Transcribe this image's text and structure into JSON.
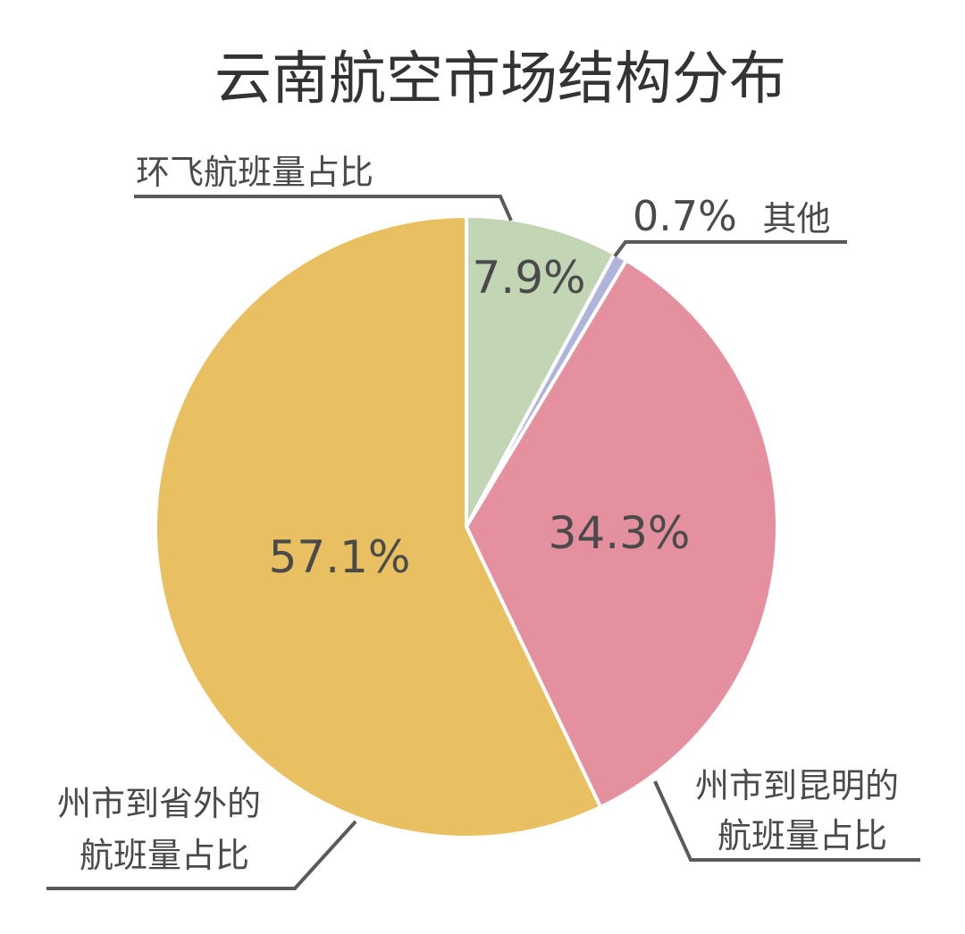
{
  "chart_data": {
    "type": "pie",
    "title": "云南航空市场结构分布",
    "slices": [
      {
        "label_lines": [
          "环飞航班量占比"
        ],
        "value": 7.9,
        "value_text": "7.9%",
        "color": "#c2d6b5"
      },
      {
        "label_lines": [
          "其他"
        ],
        "value": 0.7,
        "value_text": "0.7%",
        "color": "#aeb4dc"
      },
      {
        "label_lines": [
          "州市到昆明的",
          "航班量占比"
        ],
        "value": 34.3,
        "value_text": "34.3%",
        "color": "#e5909e"
      },
      {
        "label_lines": [
          "州市到省外的",
          "航班量占比"
        ],
        "value": 57.1,
        "value_text": "57.1%",
        "color": "#e9c061"
      }
    ]
  }
}
